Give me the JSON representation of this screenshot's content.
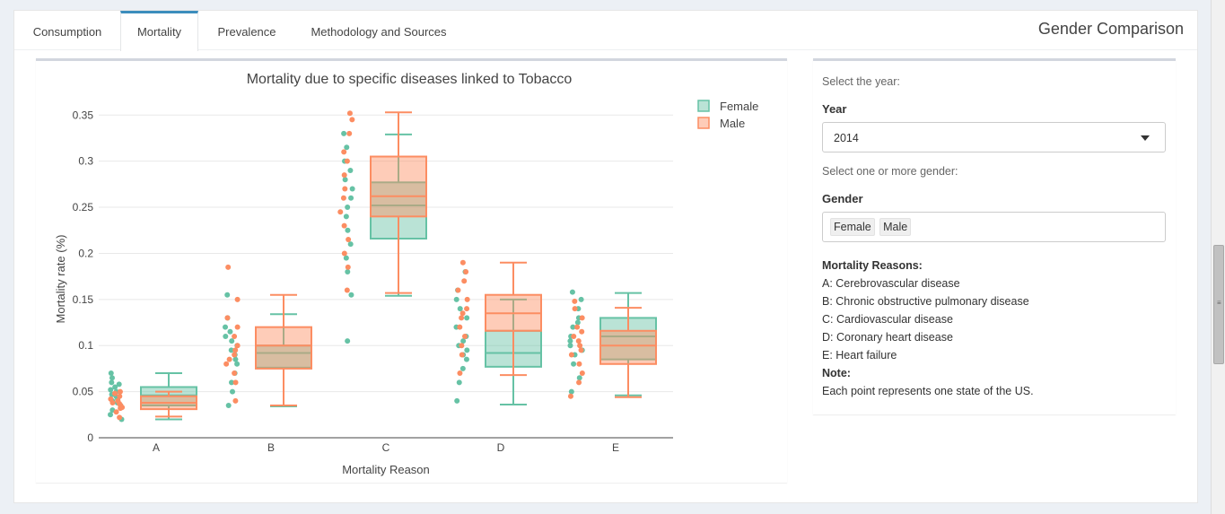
{
  "tabs": [
    {
      "label": "Consumption"
    },
    {
      "label": "Mortality"
    },
    {
      "label": "Prevalence"
    },
    {
      "label": "Methodology and Sources"
    }
  ],
  "active_tab": "Mortality",
  "panel_title": "Gender Comparison",
  "sidebar": {
    "year_hint": "Select the year:",
    "year_label": "Year",
    "year_value": "2014",
    "gender_hint": "Select one or more gender:",
    "gender_label": "Gender",
    "gender_values": [
      "Female",
      "Male"
    ],
    "reasons_title": "Mortality Reasons:",
    "reasons": [
      "A: Cerebrovascular disease",
      "B: Chronic obstructive pulmonary disease",
      "C: Cardiovascular disease",
      "D: Coronary heart disease",
      "E: Heart failure"
    ],
    "note_title": "Note:",
    "note_text": "Each point represents one state of the US."
  },
  "colors": {
    "female": "#66c2a5",
    "male": "#fc8d62",
    "tab_accent": "#3c8dbc"
  },
  "chart_data": {
    "type": "box",
    "title": "Mortality due to specific diseases linked to Tobacco",
    "xlabel": "Mortality Reason",
    "ylabel": "Mortality rate (%)",
    "categories": [
      "A",
      "B",
      "C",
      "D",
      "E"
    ],
    "ylim": [
      0,
      0.36
    ],
    "yticks": [
      0,
      0.05,
      0.1,
      0.15,
      0.2,
      0.25,
      0.3,
      0.35
    ],
    "ytick_labels": [
      "0",
      "0.05",
      "0.1",
      "0.15",
      "0.2",
      "0.25",
      "0.3",
      "0.35"
    ],
    "legend": [
      "Female",
      "Male"
    ],
    "legend_position": "top-right",
    "series": [
      {
        "name": "Female",
        "boxes": [
          {
            "min": 0.02,
            "q1": 0.035,
            "median": 0.046,
            "q3": 0.055,
            "max": 0.07
          },
          {
            "min": 0.034,
            "q1": 0.076,
            "median": 0.092,
            "q3": 0.1,
            "max": 0.134
          },
          {
            "min": 0.154,
            "q1": 0.216,
            "median": 0.252,
            "q3": 0.277,
            "max": 0.329
          },
          {
            "min": 0.036,
            "q1": 0.077,
            "median": 0.092,
            "q3": 0.116,
            "max": 0.15
          },
          {
            "min": 0.046,
            "q1": 0.085,
            "median": 0.11,
            "q3": 0.13,
            "max": 0.157
          }
        ],
        "points": [
          [
            0.025,
            0.03,
            0.035,
            0.038,
            0.04,
            0.042,
            0.045,
            0.047,
            0.05,
            0.052,
            0.055,
            0.058,
            0.06,
            0.065,
            0.07,
            0.02
          ],
          [
            0.035,
            0.05,
            0.06,
            0.07,
            0.08,
            0.085,
            0.09,
            0.095,
            0.1,
            0.105,
            0.11,
            0.115,
            0.12,
            0.13,
            0.155
          ],
          [
            0.105,
            0.155,
            0.18,
            0.195,
            0.21,
            0.225,
            0.24,
            0.25,
            0.26,
            0.27,
            0.28,
            0.29,
            0.3,
            0.315,
            0.33
          ],
          [
            0.04,
            0.06,
            0.075,
            0.085,
            0.09,
            0.095,
            0.1,
            0.105,
            0.11,
            0.12,
            0.13,
            0.14,
            0.15,
            0.16,
            0.18
          ],
          [
            0.05,
            0.065,
            0.08,
            0.09,
            0.095,
            0.1,
            0.105,
            0.11,
            0.12,
            0.125,
            0.13,
            0.14,
            0.15,
            0.158
          ]
        ]
      },
      {
        "name": "Male",
        "boxes": [
          {
            "min": 0.023,
            "q1": 0.031,
            "median": 0.038,
            "q3": 0.045,
            "max": 0.05
          },
          {
            "min": 0.035,
            "q1": 0.075,
            "median": 0.1,
            "q3": 0.12,
            "max": 0.155
          },
          {
            "min": 0.157,
            "q1": 0.24,
            "median": 0.262,
            "q3": 0.305,
            "max": 0.353
          },
          {
            "min": 0.068,
            "q1": 0.116,
            "median": 0.135,
            "q3": 0.155,
            "max": 0.19
          },
          {
            "min": 0.044,
            "q1": 0.08,
            "median": 0.1,
            "q3": 0.116,
            "max": 0.141
          }
        ],
        "points": [
          [
            0.022,
            0.028,
            0.032,
            0.035,
            0.038,
            0.04,
            0.042,
            0.045,
            0.048,
            0.05,
            0.033,
            0.037
          ],
          [
            0.04,
            0.06,
            0.07,
            0.08,
            0.085,
            0.09,
            0.095,
            0.1,
            0.11,
            0.12,
            0.13,
            0.15,
            0.185
          ],
          [
            0.16,
            0.185,
            0.2,
            0.215,
            0.23,
            0.245,
            0.26,
            0.27,
            0.285,
            0.3,
            0.31,
            0.33,
            0.345,
            0.352
          ],
          [
            0.07,
            0.09,
            0.1,
            0.11,
            0.12,
            0.13,
            0.135,
            0.14,
            0.15,
            0.16,
            0.17,
            0.18,
            0.19
          ],
          [
            0.045,
            0.06,
            0.07,
            0.08,
            0.09,
            0.095,
            0.1,
            0.105,
            0.11,
            0.115,
            0.12,
            0.13,
            0.14,
            0.148
          ]
        ]
      }
    ]
  }
}
